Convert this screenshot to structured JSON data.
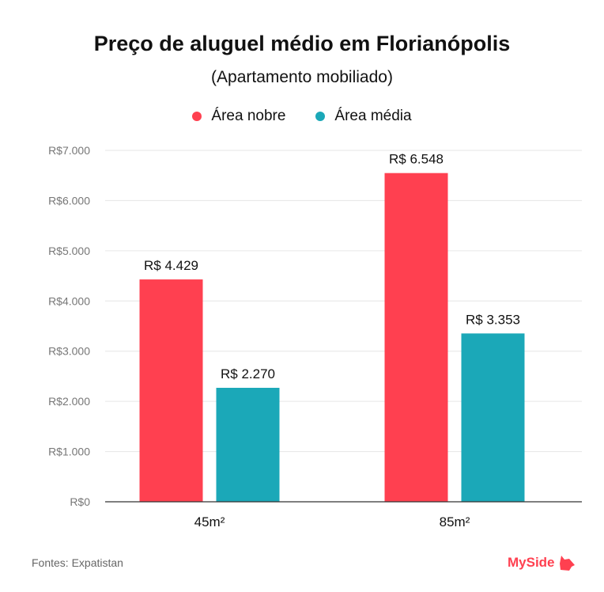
{
  "chart_data": {
    "type": "bar",
    "title": "Preço de aluguel médio em Florianópolis",
    "subtitle": "(Apartamento mobiliado)",
    "categories": [
      "45m²",
      "85m²"
    ],
    "series": [
      {
        "name": "Área nobre",
        "values": [
          4429,
          6548
        ],
        "labels": [
          "R$ 4.429",
          "R$ 6.548"
        ],
        "color": "#ff4050"
      },
      {
        "name": "Área média",
        "values": [
          2270,
          3353
        ],
        "labels": [
          "R$ 2.270",
          "R$ 3.353"
        ],
        "color": "#1ba8b8"
      }
    ],
    "ylim": [
      0,
      7000
    ],
    "yticks": [
      0,
      1000,
      2000,
      3000,
      4000,
      5000,
      6000,
      7000
    ],
    "ytick_labels": [
      "R$0",
      "R$1.000",
      "R$2.000",
      "R$3.000",
      "R$4.000",
      "R$5.000",
      "R$6.000",
      "R$7.000"
    ],
    "grid": true,
    "legend": "top-center"
  },
  "footer": {
    "source": "Fontes: Expatistan",
    "logo": "MySide"
  }
}
